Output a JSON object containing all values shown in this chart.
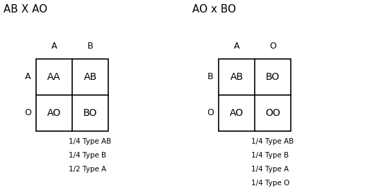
{
  "bg_color": "#ffffff",
  "title1": "AB X AO",
  "title2": "AO x BO",
  "table1": {
    "col_headers": [
      "A",
      "B"
    ],
    "row_headers": [
      "A",
      "O"
    ],
    "cells": [
      [
        "AA",
        "AB"
      ],
      [
        "AO",
        "BO"
      ]
    ]
  },
  "table2": {
    "col_headers": [
      "A",
      "O"
    ],
    "row_headers": [
      "B",
      "O"
    ],
    "cells": [
      [
        "AB",
        "BO"
      ],
      [
        "AO",
        "OO"
      ]
    ]
  },
  "legend1": [
    "1/4 Type AB",
    "1/4 Type B",
    "1/2 Type A"
  ],
  "legend2": [
    "1/4 Type AB",
    "1/4 Type B",
    "1/4 Type A",
    "1/4 Type O"
  ],
  "title_fontsize": 11,
  "header_fontsize": 9,
  "cell_fontsize": 10,
  "legend_fontsize": 7.5
}
